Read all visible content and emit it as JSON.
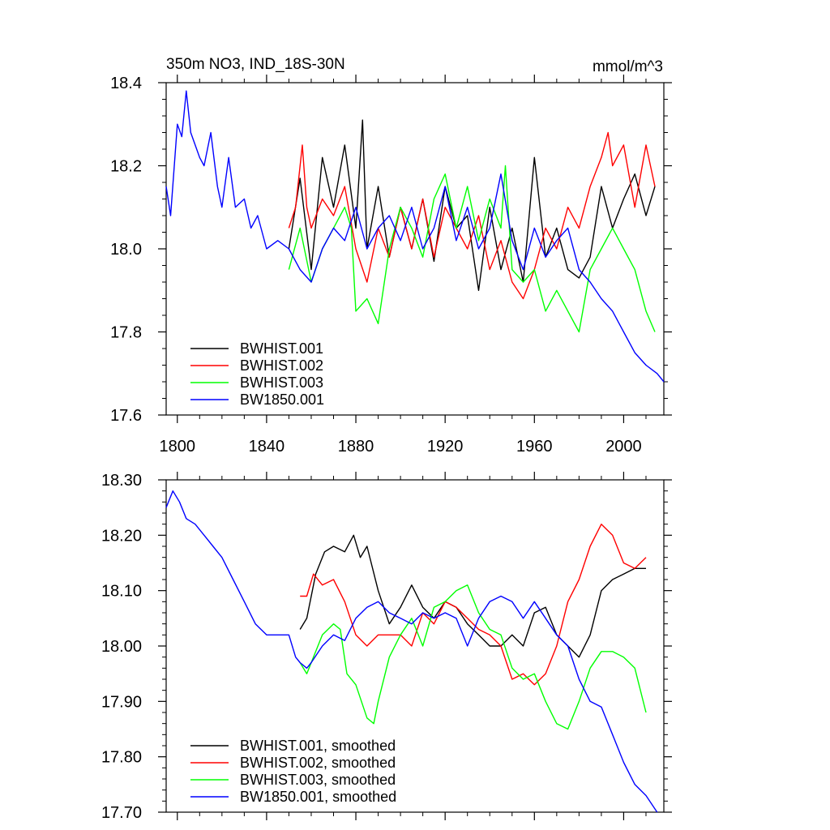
{
  "colors": {
    "BWHIST.001": "#000000",
    "BWHIST.002": "#ff0000",
    "BWHIST.003": "#00ff00",
    "BW1850.001": "#0000ff"
  },
  "chart_data": [
    {
      "type": "line",
      "title": "350m NO3, IND_18S-30N",
      "units_label": "mmol/m^3",
      "xlabel": "",
      "ylabel": "",
      "xlim": [
        1795,
        2018
      ],
      "ylim": [
        17.6,
        18.4
      ],
      "x_ticks": [
        1800,
        1840,
        1880,
        1920,
        1960,
        2000
      ],
      "x_tick_labels": [
        "1800",
        "1840",
        "1880",
        "1920",
        "1960",
        "2000"
      ],
      "y_ticks": [
        17.6,
        17.8,
        18.0,
        18.2,
        18.4
      ],
      "y_tick_labels": [
        "17.6",
        "17.8",
        "18.0",
        "18.2",
        "18.4"
      ],
      "legend_position": "bottom-left",
      "series": [
        {
          "name": "BWHIST.001",
          "x": [
            1850,
            1855,
            1860,
            1865,
            1870,
            1875,
            1880,
            1883,
            1885,
            1890,
            1895,
            1900,
            1905,
            1910,
            1915,
            1920,
            1925,
            1930,
            1935,
            1940,
            1945,
            1950,
            1955,
            1960,
            1965,
            1970,
            1975,
            1980,
            1985,
            1990,
            1995,
            2000,
            2005,
            2010,
            2014
          ],
          "y": [
            18.0,
            18.17,
            17.95,
            18.22,
            18.1,
            18.25,
            18.05,
            18.31,
            18.0,
            18.15,
            17.98,
            18.1,
            18.0,
            18.12,
            17.97,
            18.15,
            18.05,
            18.08,
            17.9,
            18.1,
            17.95,
            18.05,
            17.92,
            18.22,
            17.98,
            18.05,
            17.95,
            17.93,
            17.98,
            18.15,
            18.05,
            18.12,
            18.18,
            18.08,
            18.15
          ]
        },
        {
          "name": "BWHIST.002",
          "x": [
            1850,
            1853,
            1856,
            1858,
            1860,
            1865,
            1870,
            1875,
            1880,
            1885,
            1890,
            1895,
            1900,
            1905,
            1910,
            1915,
            1920,
            1925,
            1930,
            1935,
            1940,
            1945,
            1950,
            1955,
            1960,
            1965,
            1970,
            1975,
            1980,
            1985,
            1990,
            1993,
            1995,
            2000,
            2005,
            2010,
            2014
          ],
          "y": [
            18.05,
            18.1,
            18.25,
            18.1,
            18.05,
            18.12,
            18.08,
            18.15,
            18.0,
            17.92,
            18.05,
            17.98,
            18.1,
            18.0,
            18.12,
            17.98,
            18.1,
            18.05,
            18.0,
            18.08,
            17.95,
            18.02,
            17.92,
            17.88,
            17.95,
            18.05,
            18.0,
            18.1,
            18.05,
            18.15,
            18.22,
            18.28,
            18.2,
            18.25,
            18.1,
            18.25,
            18.15
          ]
        },
        {
          "name": "BWHIST.003",
          "x": [
            1850,
            1855,
            1860,
            1865,
            1870,
            1875,
            1878,
            1880,
            1885,
            1890,
            1895,
            1900,
            1905,
            1910,
            1915,
            1920,
            1925,
            1930,
            1935,
            1940,
            1945,
            1947,
            1950,
            1955,
            1960,
            1965,
            1970,
            1975,
            1980,
            1985,
            1990,
            1995,
            2000,
            2005,
            2010,
            2014
          ],
          "y": [
            17.95,
            18.05,
            17.92,
            18.0,
            18.05,
            18.1,
            18.05,
            17.85,
            17.88,
            17.82,
            18.0,
            18.1,
            18.05,
            17.98,
            18.12,
            18.18,
            18.05,
            18.15,
            18.02,
            18.12,
            18.05,
            18.2,
            17.95,
            17.92,
            17.95,
            17.85,
            17.9,
            17.85,
            17.8,
            17.95,
            18.0,
            18.05,
            18.0,
            17.95,
            17.85,
            17.8
          ]
        },
        {
          "name": "BW1850.001",
          "x": [
            1795,
            1797,
            1800,
            1802,
            1804,
            1806,
            1808,
            1810,
            1812,
            1815,
            1818,
            1820,
            1823,
            1826,
            1830,
            1833,
            1836,
            1840,
            1845,
            1850,
            1855,
            1860,
            1865,
            1870,
            1875,
            1880,
            1885,
            1890,
            1895,
            1900,
            1905,
            1910,
            1915,
            1920,
            1925,
            1930,
            1935,
            1940,
            1945,
            1950,
            1955,
            1960,
            1965,
            1970,
            1975,
            1980,
            1985,
            1990,
            1995,
            2000,
            2005,
            2010,
            2015,
            2018
          ],
          "y": [
            18.15,
            18.08,
            18.3,
            18.27,
            18.38,
            18.28,
            18.25,
            18.22,
            18.2,
            18.28,
            18.15,
            18.1,
            18.22,
            18.1,
            18.12,
            18.05,
            18.08,
            18.0,
            18.02,
            18.0,
            17.95,
            17.92,
            18.0,
            18.05,
            18.02,
            18.1,
            18.0,
            18.05,
            18.08,
            18.02,
            18.1,
            18.0,
            18.05,
            18.15,
            18.02,
            18.1,
            18.0,
            18.05,
            18.18,
            18.02,
            17.95,
            18.05,
            17.98,
            18.02,
            18.05,
            17.95,
            17.92,
            17.88,
            17.85,
            17.8,
            17.75,
            17.72,
            17.7,
            17.68
          ]
        }
      ]
    },
    {
      "type": "line",
      "title": "",
      "xlabel": "",
      "ylabel": "",
      "xlim": [
        1795,
        2018
      ],
      "ylim": [
        17.7,
        18.3
      ],
      "x_ticks": [
        1800,
        1840,
        1880,
        1920,
        1960,
        2000
      ],
      "y_ticks": [
        17.7,
        17.8,
        17.9,
        18.0,
        18.1,
        18.2,
        18.3
      ],
      "y_tick_labels": [
        "17.70",
        "17.80",
        "17.90",
        "18.00",
        "18.10",
        "18.20",
        "18.30"
      ],
      "legend_position": "bottom-left",
      "series": [
        {
          "name": "BWHIST.001, smoothed",
          "x": [
            1855,
            1858,
            1862,
            1866,
            1870,
            1875,
            1879,
            1882,
            1885,
            1890,
            1895,
            1900,
            1905,
            1910,
            1915,
            1920,
            1925,
            1930,
            1935,
            1940,
            1945,
            1950,
            1955,
            1960,
            1965,
            1970,
            1975,
            1980,
            1985,
            1990,
            1995,
            2000,
            2005,
            2010
          ],
          "y": [
            18.03,
            18.05,
            18.13,
            18.17,
            18.18,
            18.17,
            18.2,
            18.16,
            18.18,
            18.1,
            18.04,
            18.07,
            18.11,
            18.07,
            18.05,
            18.08,
            18.07,
            18.04,
            18.02,
            18.0,
            18.0,
            18.02,
            18.0,
            18.06,
            18.07,
            18.02,
            18.0,
            17.98,
            18.02,
            18.1,
            18.12,
            18.13,
            18.14,
            18.14
          ]
        },
        {
          "name": "BWHIST.002, smoothed",
          "x": [
            1855,
            1858,
            1861,
            1865,
            1870,
            1875,
            1880,
            1885,
            1890,
            1895,
            1900,
            1905,
            1910,
            1915,
            1920,
            1925,
            1930,
            1935,
            1940,
            1945,
            1950,
            1955,
            1960,
            1965,
            1970,
            1975,
            1980,
            1985,
            1990,
            1995,
            2000,
            2005,
            2010
          ],
          "y": [
            18.09,
            18.09,
            18.13,
            18.11,
            18.12,
            18.08,
            18.02,
            18.0,
            18.02,
            18.02,
            18.02,
            18.0,
            18.06,
            18.04,
            18.08,
            18.07,
            18.05,
            18.03,
            18.02,
            18.0,
            17.94,
            17.95,
            17.93,
            17.95,
            18.0,
            18.08,
            18.12,
            18.18,
            18.22,
            18.2,
            18.15,
            18.14,
            18.16
          ]
        },
        {
          "name": "BWHIST.003, smoothed",
          "x": [
            1855,
            1858,
            1861,
            1865,
            1870,
            1873,
            1876,
            1880,
            1885,
            1888,
            1890,
            1895,
            1900,
            1905,
            1910,
            1915,
            1920,
            1925,
            1930,
            1935,
            1940,
            1945,
            1950,
            1955,
            1960,
            1965,
            1970,
            1975,
            1980,
            1985,
            1990,
            1995,
            2000,
            2005,
            2010
          ],
          "y": [
            17.97,
            17.95,
            17.98,
            18.02,
            18.04,
            18.03,
            17.95,
            17.93,
            17.87,
            17.86,
            17.9,
            17.98,
            18.02,
            18.05,
            18.0,
            18.07,
            18.08,
            18.1,
            18.11,
            18.06,
            18.03,
            18.02,
            17.96,
            17.94,
            17.95,
            17.9,
            17.86,
            17.85,
            17.9,
            17.96,
            17.99,
            17.99,
            17.98,
            17.96,
            17.88
          ]
        },
        {
          "name": "BW1850.001, smoothed",
          "x": [
            1795,
            1798,
            1801,
            1804,
            1808,
            1812,
            1816,
            1820,
            1825,
            1830,
            1835,
            1840,
            1845,
            1850,
            1853,
            1855,
            1858,
            1860,
            1865,
            1870,
            1875,
            1880,
            1885,
            1890,
            1895,
            1900,
            1905,
            1910,
            1915,
            1920,
            1925,
            1930,
            1935,
            1940,
            1945,
            1950,
            1955,
            1960,
            1965,
            1970,
            1975,
            1980,
            1985,
            1990,
            1995,
            2000,
            2005,
            2010,
            2015
          ],
          "y": [
            18.25,
            18.28,
            18.26,
            18.23,
            18.22,
            18.2,
            18.18,
            18.16,
            18.12,
            18.08,
            18.04,
            18.02,
            18.02,
            18.02,
            17.98,
            17.97,
            17.96,
            17.97,
            18.0,
            18.02,
            18.01,
            18.05,
            18.07,
            18.08,
            18.06,
            18.05,
            18.04,
            18.06,
            18.05,
            18.06,
            18.05,
            18.0,
            18.05,
            18.08,
            18.09,
            18.08,
            18.05,
            18.08,
            18.05,
            18.02,
            18.0,
            17.94,
            17.9,
            17.89,
            17.84,
            17.79,
            17.75,
            17.73,
            17.7
          ]
        }
      ]
    }
  ]
}
